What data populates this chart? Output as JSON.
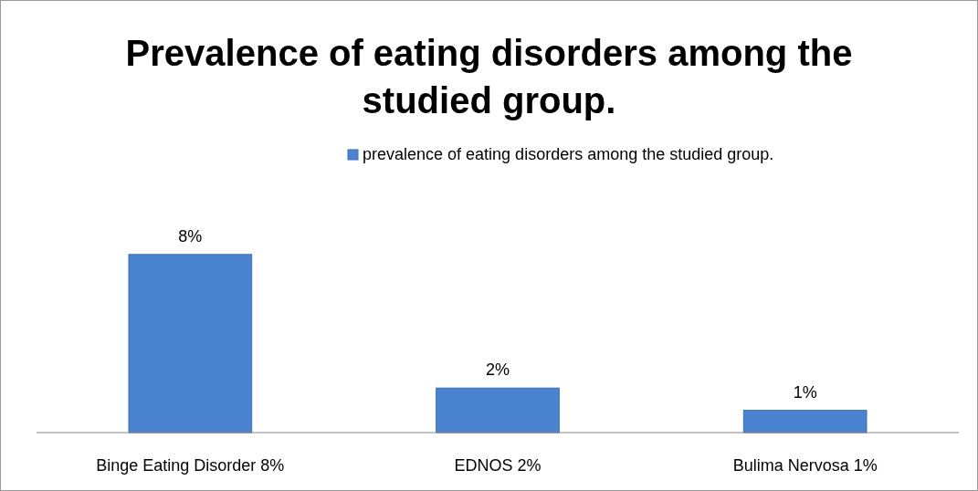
{
  "chart_data": {
    "type": "bar",
    "title": "Prevalence of eating disorders among the studied group.",
    "categories": [
      "Binge Eating Disorder 8%",
      "EDNOS 2%",
      "Bulima Nervosa 1%"
    ],
    "series": [
      {
        "name": "prevalence of eating disorders among the studied group.",
        "color": "#4a84d0",
        "values": [
          8,
          2,
          1
        ],
        "value_labels": [
          "8%",
          "2%",
          "1%"
        ]
      }
    ],
    "legend": "top"
  }
}
